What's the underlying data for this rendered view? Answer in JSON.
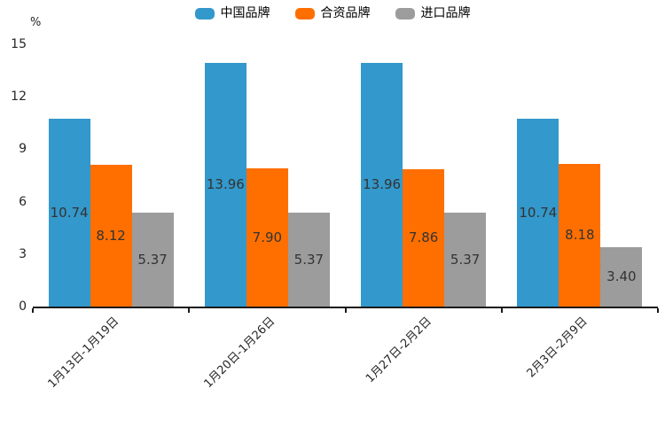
{
  "chart_data": {
    "type": "bar",
    "title": "",
    "xlabel": "",
    "ylabel": "%",
    "ylim": [
      0,
      15
    ],
    "yticks": [
      0,
      3,
      6,
      9,
      12,
      15
    ],
    "grid": false,
    "legend_position": "top-center",
    "value_label_format": "2 decimals, centered inside bars",
    "categories": [
      "1月13日-1月19日",
      "1月20日-1月26日",
      "1月27日-2月2日",
      "2月3日-2月9日"
    ],
    "series": [
      {
        "name": "中国品牌",
        "color": "#3398cb",
        "values": [
          10.74,
          13.96,
          13.96,
          10.74
        ]
      },
      {
        "name": "合资品牌",
        "color": "#ff6f00",
        "values": [
          8.12,
          7.9,
          7.86,
          8.18
        ]
      },
      {
        "name": "进口品牌",
        "color": "#9c9c9c",
        "values": [
          5.37,
          5.37,
          5.37,
          3.4
        ]
      }
    ],
    "colors": {
      "axis": "#1a1a1a",
      "tick_label": "#262626",
      "bar_value_label": "#333333",
      "background": "#ffffff"
    }
  }
}
